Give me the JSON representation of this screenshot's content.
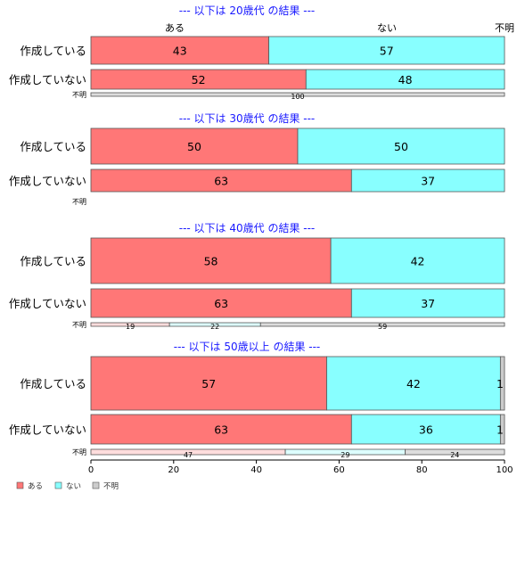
{
  "chart_data": {
    "type": "bar",
    "orientation": "horizontal",
    "stacked": true,
    "xlim": [
      0,
      100
    ],
    "x_ticks": [
      0,
      20,
      40,
      60,
      80,
      100
    ],
    "grid": false,
    "legend_position": "bottom-left",
    "column_labels": [
      "ある",
      "ない",
      "不明"
    ],
    "legend": [
      {
        "name": "ある",
        "color": "#ff7777"
      },
      {
        "name": "ない",
        "color": "#88ffff"
      },
      {
        "name": "不明",
        "color": "#cccccc"
      }
    ],
    "panels": [
      {
        "title": "--- 以下は 20歳代 の結果 ---",
        "rows": [
          {
            "category": "作成している",
            "values": [
              43,
              57,
              0
            ],
            "labels": [
              "43",
              "57",
              ""
            ]
          },
          {
            "category": "作成していない",
            "values": [
              52,
              48,
              0
            ],
            "labels": [
              "52",
              "48",
              ""
            ]
          },
          {
            "category": "不明",
            "values": [
              0,
              0,
              100
            ],
            "labels": [
              "",
              "",
              "100"
            ]
          }
        ]
      },
      {
        "title": "--- 以下は 30歳代 の結果 ---",
        "rows": [
          {
            "category": "作成している",
            "values": [
              50,
              50,
              0
            ],
            "labels": [
              "50",
              "50",
              ""
            ]
          },
          {
            "category": "作成していない",
            "values": [
              63,
              37,
              0
            ],
            "labels": [
              "63",
              "37",
              ""
            ]
          },
          {
            "category": "不明",
            "values": [
              0,
              0,
              0
            ],
            "labels": [
              "",
              "",
              ""
            ]
          }
        ]
      },
      {
        "title": "--- 以下は 40歳代 の結果 ---",
        "rows": [
          {
            "category": "作成している",
            "values": [
              58,
              42,
              0
            ],
            "labels": [
              "58",
              "42",
              ""
            ]
          },
          {
            "category": "作成していない",
            "values": [
              63,
              37,
              0
            ],
            "labels": [
              "63",
              "37",
              ""
            ]
          },
          {
            "category": "不明",
            "values": [
              19,
              22,
              59
            ],
            "labels": [
              "19",
              "22",
              "59"
            ]
          }
        ]
      },
      {
        "title": "--- 以下は 50歳以上 の結果 ---",
        "rows": [
          {
            "category": "作成している",
            "values": [
              57,
              42,
              1
            ],
            "labels": [
              "57",
              "42",
              "1"
            ]
          },
          {
            "category": "作成していない",
            "values": [
              63,
              36,
              1
            ],
            "labels": [
              "63",
              "36",
              "1"
            ]
          },
          {
            "category": "不明",
            "values": [
              47,
              29,
              24
            ],
            "labels": [
              "47",
              "29",
              "24"
            ]
          }
        ]
      }
    ],
    "colors": {
      "main": [
        "#ff7777",
        "#88ffff",
        "#cccccc"
      ],
      "faint": [
        "#ffdddd",
        "#ddffff",
        "#dddddd"
      ],
      "title": "#1a1aff"
    }
  }
}
